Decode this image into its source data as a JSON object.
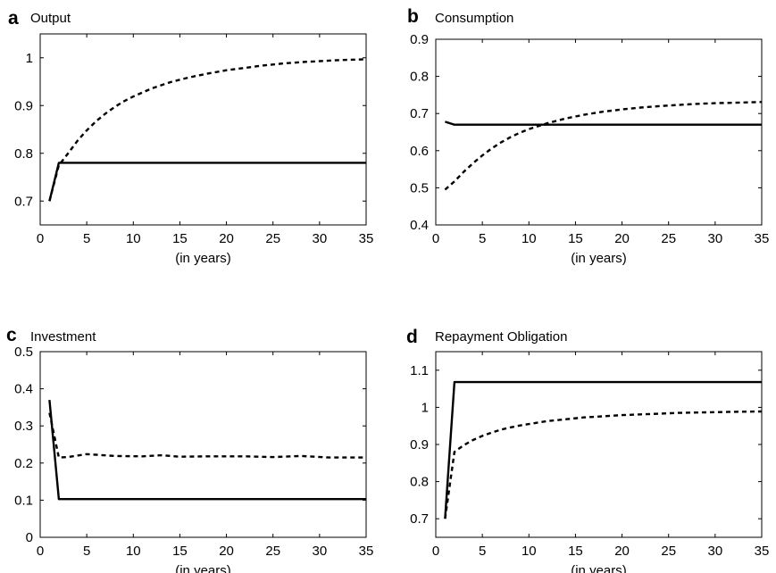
{
  "chart_data": [
    {
      "type": "line",
      "panel_letter": "a",
      "title": "Output",
      "xlabel": "(in years)",
      "ylabel": "",
      "xlim": [
        0,
        35
      ],
      "ylim": [
        0.65,
        1.05
      ],
      "xticks": [
        0,
        5,
        10,
        15,
        20,
        25,
        30,
        35
      ],
      "yticks": [
        0.7,
        0.8,
        0.9,
        1
      ],
      "ytick_labels": [
        "0.7",
        "0.8",
        "0.9",
        "1"
      ],
      "grid": false,
      "series": [
        {
          "style": "solid",
          "color": "#000000",
          "x": [
            1,
            2,
            35
          ],
          "y": [
            0.7,
            0.78,
            0.78
          ]
        },
        {
          "style": "dashed",
          "color": "#000000",
          "x": [
            1,
            2,
            3,
            4,
            5,
            6,
            7,
            8,
            9,
            10,
            12,
            14,
            16,
            18,
            20,
            22,
            24,
            26,
            28,
            30,
            32,
            35
          ],
          "y": [
            0.7,
            0.775,
            0.8,
            0.826,
            0.848,
            0.867,
            0.883,
            0.897,
            0.909,
            0.919,
            0.936,
            0.949,
            0.959,
            0.967,
            0.974,
            0.979,
            0.984,
            0.988,
            0.991,
            0.993,
            0.995,
            0.997
          ]
        }
      ]
    },
    {
      "type": "line",
      "panel_letter": "b",
      "title": "Consumption",
      "xlabel": "(in years)",
      "ylabel": "",
      "xlim": [
        0,
        35
      ],
      "ylim": [
        0.4,
        0.9
      ],
      "xticks": [
        0,
        5,
        10,
        15,
        20,
        25,
        30,
        35
      ],
      "yticks": [
        0.4,
        0.5,
        0.6,
        0.7,
        0.8,
        0.9
      ],
      "ytick_labels": [
        "0.4",
        "0.5",
        "0.6",
        "0.7",
        "0.8",
        "0.9"
      ],
      "grid": false,
      "series": [
        {
          "style": "solid",
          "color": "#000000",
          "x": [
            1,
            2,
            35
          ],
          "y": [
            0.678,
            0.67,
            0.67
          ]
        },
        {
          "style": "dashed",
          "color": "#000000",
          "x": [
            1,
            2,
            3,
            4,
            5,
            6,
            7,
            8,
            9,
            10,
            12,
            14,
            16,
            18,
            20,
            22,
            24,
            26,
            28,
            30,
            32,
            35
          ],
          "y": [
            0.495,
            0.517,
            0.543,
            0.566,
            0.587,
            0.606,
            0.622,
            0.636,
            0.648,
            0.658,
            0.674,
            0.687,
            0.697,
            0.705,
            0.711,
            0.716,
            0.72,
            0.723,
            0.726,
            0.728,
            0.729,
            0.731
          ]
        }
      ]
    },
    {
      "type": "line",
      "panel_letter": "c",
      "title": "Investment",
      "xlabel": "(in years)",
      "ylabel": "",
      "xlim": [
        0,
        35
      ],
      "ylim": [
        0,
        0.5
      ],
      "xticks": [
        0,
        5,
        10,
        15,
        20,
        25,
        30,
        35
      ],
      "yticks": [
        0,
        0.1,
        0.2,
        0.3,
        0.4,
        0.5
      ],
      "ytick_labels": [
        "0",
        "0.1",
        "0.2",
        "0.3",
        "0.4",
        "0.5"
      ],
      "grid": false,
      "series": [
        {
          "style": "solid",
          "color": "#000000",
          "x": [
            1,
            2,
            35
          ],
          "y": [
            0.37,
            0.103,
            0.103
          ]
        },
        {
          "style": "dashed",
          "color": "#000000",
          "x": [
            1,
            2,
            3,
            5,
            8,
            11,
            13,
            15,
            18,
            22,
            25,
            28,
            31,
            35
          ],
          "y": [
            0.335,
            0.215,
            0.216,
            0.224,
            0.219,
            0.218,
            0.221,
            0.217,
            0.218,
            0.218,
            0.216,
            0.219,
            0.215,
            0.215
          ]
        }
      ]
    },
    {
      "type": "line",
      "panel_letter": "d",
      "title": "Repayment Obligation",
      "xlabel": "(in years)",
      "ylabel": "",
      "xlim": [
        0,
        35
      ],
      "ylim": [
        0.65,
        1.15
      ],
      "xticks": [
        0,
        5,
        10,
        15,
        20,
        25,
        30,
        35
      ],
      "yticks": [
        0.7,
        0.8,
        0.9,
        1,
        1.1
      ],
      "ytick_labels": [
        "0.7",
        "0.8",
        "0.9",
        "1",
        "1.1"
      ],
      "grid": false,
      "series": [
        {
          "style": "solid",
          "color": "#000000",
          "x": [
            1,
            2,
            35
          ],
          "y": [
            0.7,
            1.068,
            1.068
          ]
        },
        {
          "style": "dashed",
          "color": "#000000",
          "x": [
            1,
            2,
            3,
            4,
            5,
            6,
            7,
            8,
            9,
            10,
            12,
            14,
            16,
            18,
            20,
            22,
            24,
            26,
            28,
            30,
            32,
            35
          ],
          "y": [
            0.7,
            0.88,
            0.898,
            0.912,
            0.923,
            0.932,
            0.94,
            0.946,
            0.951,
            0.955,
            0.963,
            0.968,
            0.973,
            0.976,
            0.979,
            0.981,
            0.983,
            0.985,
            0.986,
            0.987,
            0.988,
            0.989
          ]
        }
      ]
    }
  ]
}
